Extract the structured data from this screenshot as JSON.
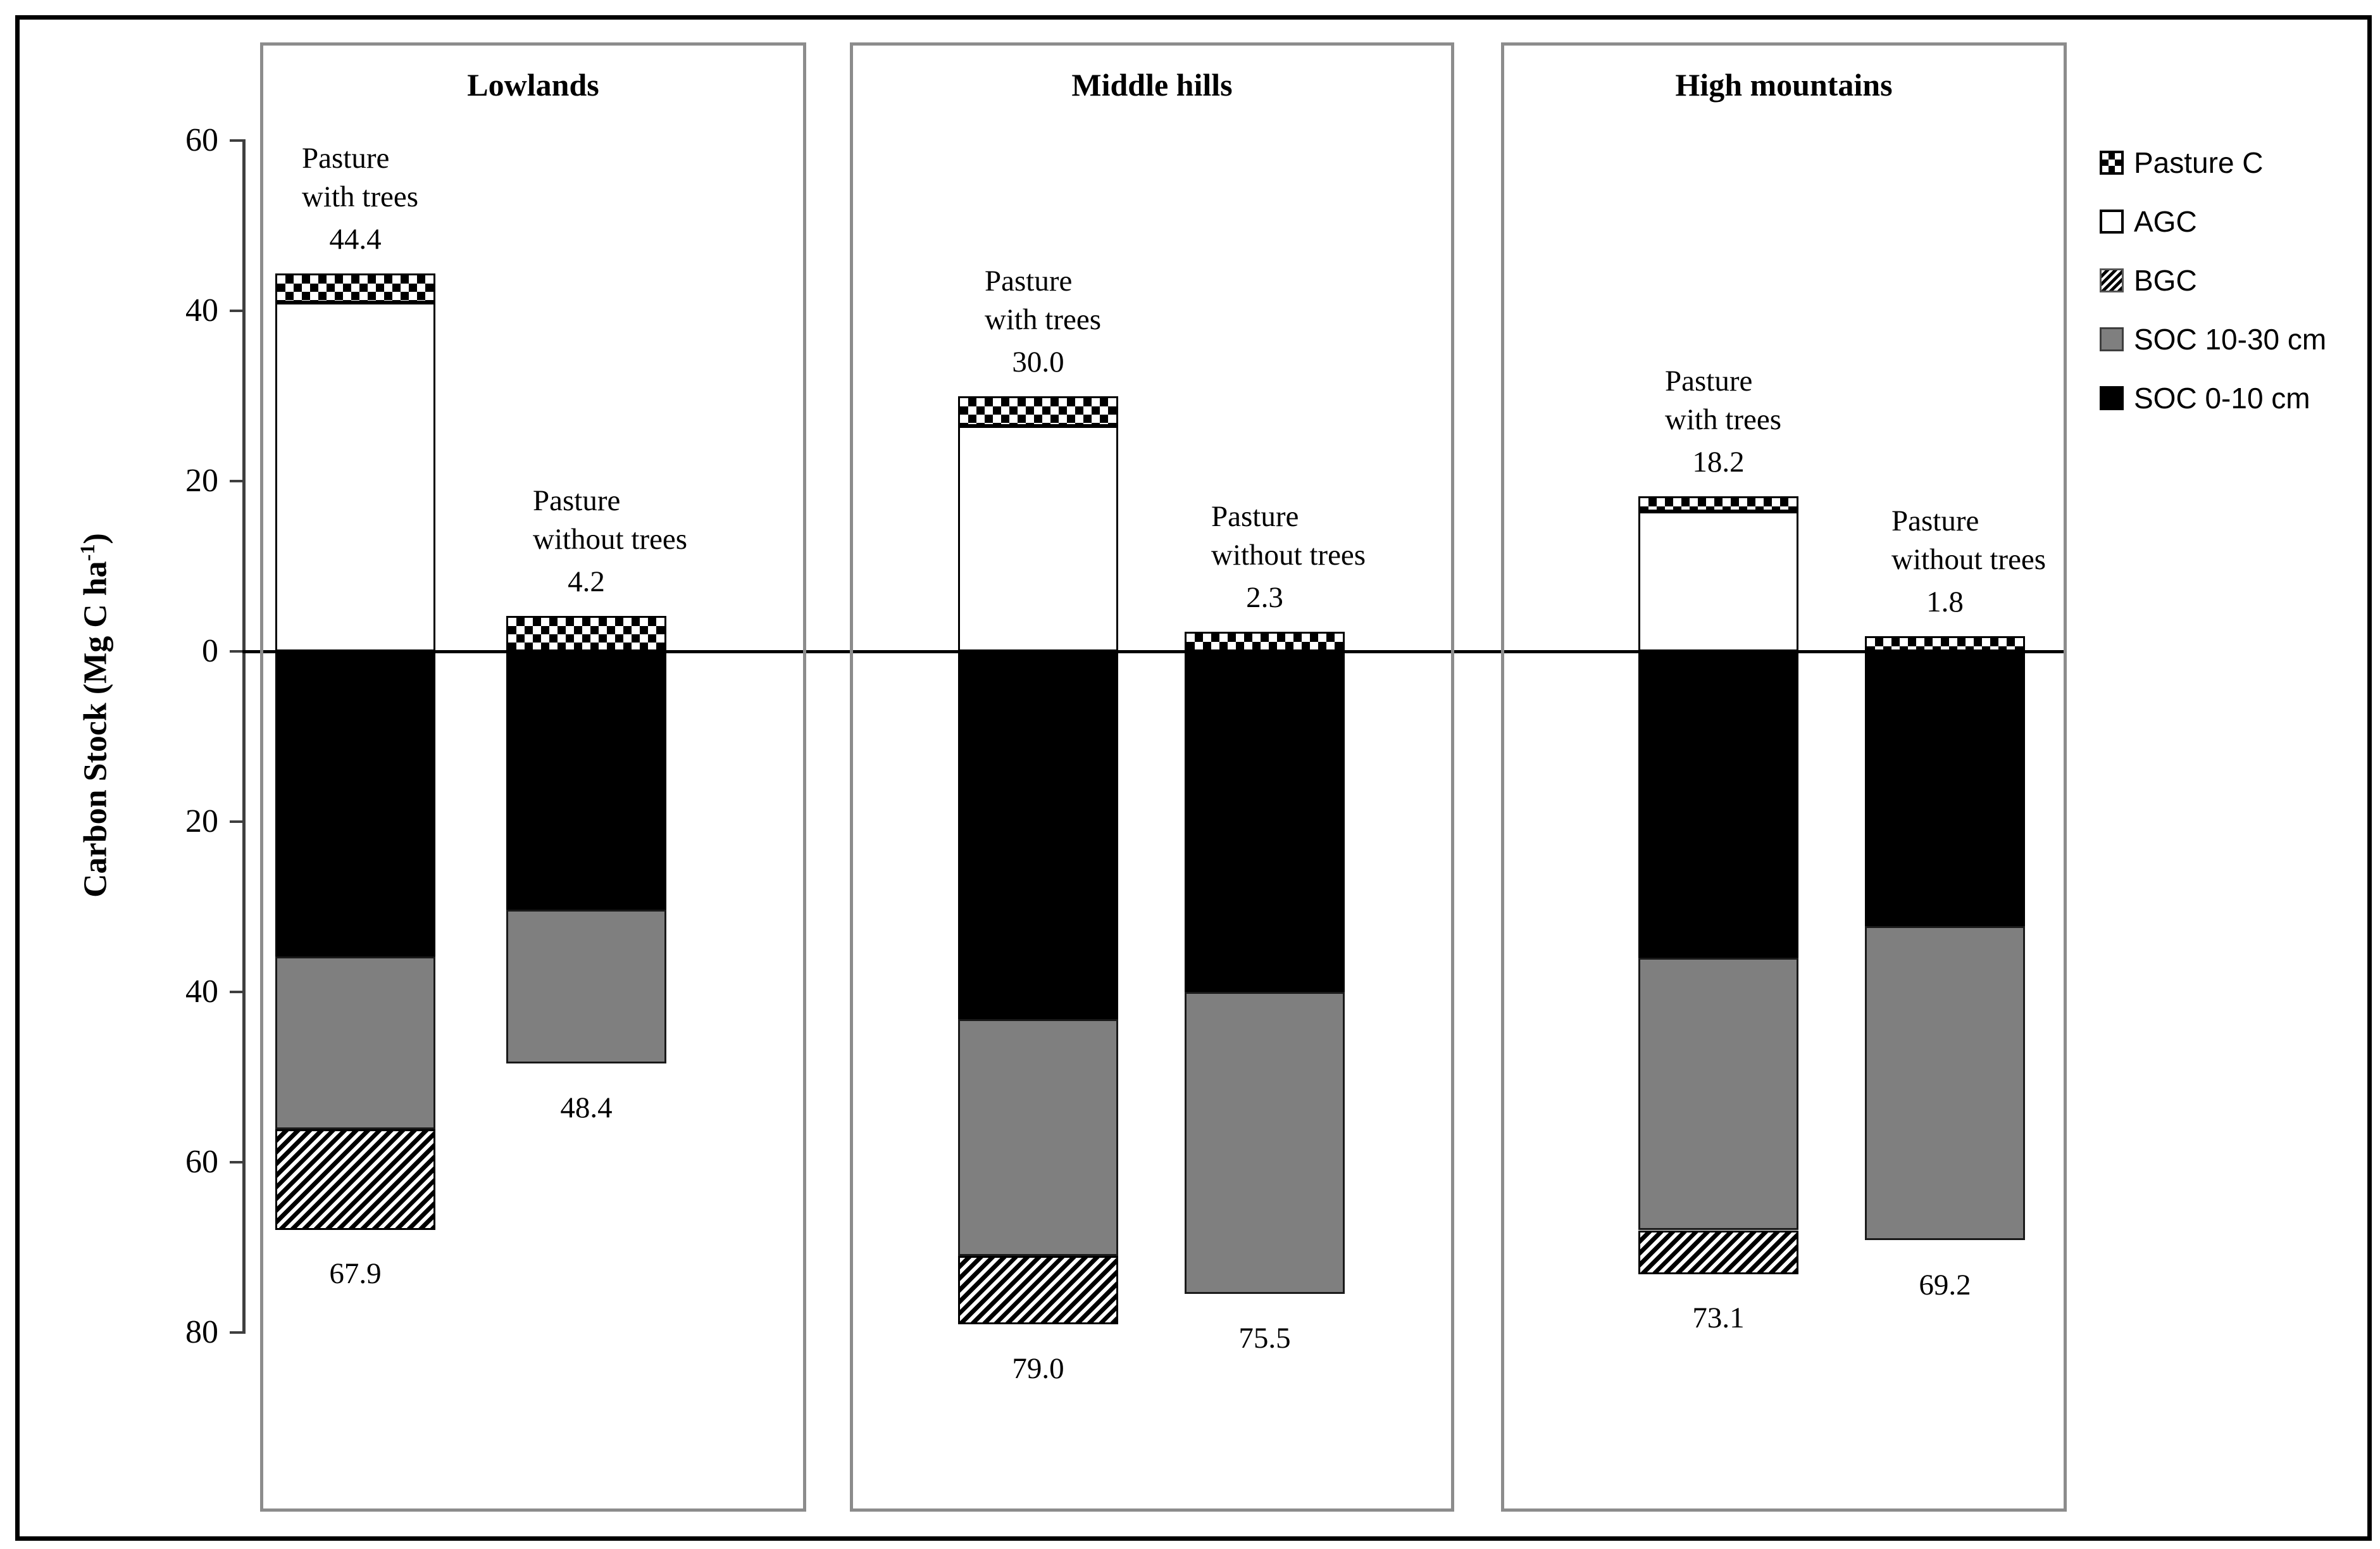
{
  "figure_title": "",
  "colors": {
    "black": "#000000",
    "soil_gray": "#7f7f7f",
    "panel_border": "#8c8c8c",
    "axis": "#3f3f3f",
    "background": "#ffffff"
  },
  "chart_data": {
    "type": "bar",
    "stacked": true,
    "orientation": "vertical-diverging",
    "ylabel_main": "Carbon Stock (Mg C ha",
    "ylabel_sup": "-1",
    "ylabel_close": ")",
    "ylim": [
      -80,
      60
    ],
    "grid": false,
    "legend_position": "right",
    "y_ticks": [
      60,
      40,
      20,
      0,
      -20,
      -40,
      -60,
      -80
    ],
    "y_tick_labels": [
      "60",
      "40",
      "20",
      "0",
      "20",
      "40",
      "60",
      "80"
    ],
    "legend": [
      {
        "label": "Pasture C",
        "pattern": "checker"
      },
      {
        "label": "AGC",
        "pattern": "white"
      },
      {
        "label": "BGC",
        "pattern": "hatch"
      },
      {
        "label": "SOC 10-30 cm",
        "pattern": "gray"
      },
      {
        "label": "SOC 0-10 cm",
        "pattern": "black"
      }
    ],
    "panels": [
      {
        "title": "Lowlands",
        "bars": [
          {
            "name_line1": "Pasture",
            "name_line2": "with trees",
            "above_total_label": "44.4",
            "below_total_label": "67.9",
            "above": {
              "pasture_c": 3.4,
              "agc": 41.0
            },
            "below": {
              "soc_0_10": 35.8,
              "soc_10_30": 20.3,
              "bgc": 11.8
            }
          },
          {
            "name_line1": "Pasture",
            "name_line2": "without trees",
            "above_total_label": "4.2",
            "below_total_label": "48.4",
            "above": {
              "pasture_c": 4.2,
              "agc": 0
            },
            "below": {
              "soc_0_10": 30.3,
              "soc_10_30": 18.1,
              "bgc": 0
            }
          }
        ]
      },
      {
        "title": "Middle hills",
        "bars": [
          {
            "name_line1": "Pasture",
            "name_line2": "with trees",
            "above_total_label": "30.0",
            "below_total_label": "79.0",
            "above": {
              "pasture_c": 3.5,
              "agc": 26.5
            },
            "below": {
              "soc_0_10": 43.2,
              "soc_10_30": 27.8,
              "bgc": 8.0
            }
          },
          {
            "name_line1": "Pasture",
            "name_line2": "without trees",
            "above_total_label": "2.3",
            "below_total_label": "75.5",
            "above": {
              "pasture_c": 2.3,
              "agc": 0
            },
            "below": {
              "soc_0_10": 40.0,
              "soc_10_30": 35.5,
              "bgc": 0
            }
          }
        ]
      },
      {
        "title": "High mountains",
        "bars": [
          {
            "name_line1": "Pasture",
            "name_line2": "with trees",
            "above_total_label": "18.2",
            "below_total_label": "73.1",
            "above": {
              "pasture_c": 1.8,
              "agc": 16.4
            },
            "below": {
              "soc_0_10": 36.0,
              "soc_10_30": 32.0,
              "bgc": 5.1
            }
          },
          {
            "name_line1": "Pasture",
            "name_line2": "without trees",
            "above_total_label": "1.8",
            "below_total_label": "69.2",
            "above": {
              "pasture_c": 1.8,
              "agc": 0
            },
            "below": {
              "soc_0_10": 32.3,
              "soc_10_30": 36.9,
              "bgc": 0
            }
          }
        ]
      }
    ]
  }
}
